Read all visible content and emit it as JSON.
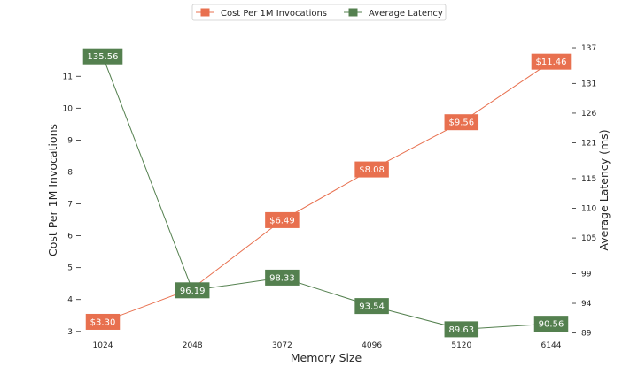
{
  "chart_data": {
    "type": "line",
    "x": [
      1024,
      2048,
      3072,
      4096,
      5120,
      6144
    ],
    "xlabel": "Memory Size",
    "grid": false,
    "legend_position": "top-center",
    "series": [
      {
        "name": "Cost Per 1M Invocations",
        "axis": "left",
        "color": "#e8704f",
        "values": [
          3.3,
          4.35,
          6.49,
          8.08,
          9.56,
          11.46
        ],
        "labels": [
          "$3.30",
          "",
          "$6.49",
          "$8.08",
          "$9.56",
          "$11.46"
        ]
      },
      {
        "name": "Average Latency",
        "axis": "right",
        "color": "#54804f",
        "values": [
          135.56,
          96.19,
          98.33,
          93.54,
          89.63,
          90.56
        ],
        "labels": [
          "135.56",
          "96.19",
          "98.33",
          "93.54",
          "89.63",
          "90.56"
        ]
      }
    ],
    "y_left": {
      "label": "Cost Per 1M Invocations",
      "ticks": [
        3,
        4,
        5,
        6,
        7,
        8,
        9,
        10,
        11
      ],
      "range": [
        2.8,
        11.95
      ]
    },
    "y_right": {
      "label": "Average Latency (ms)",
      "ticks": [
        89,
        94,
        99,
        105,
        110,
        115,
        121,
        126,
        131,
        137
      ],
      "range": [
        88.2,
        137.3
      ]
    }
  }
}
